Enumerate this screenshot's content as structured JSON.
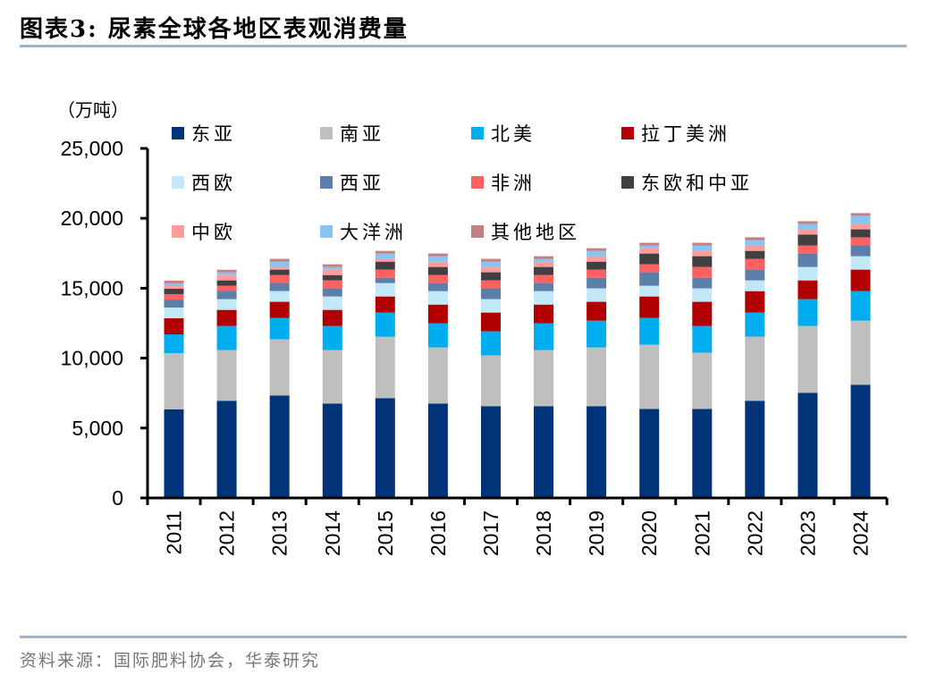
{
  "title": "图表3:  尿素全球各地区表观消费量",
  "source": "资料来源：国际肥料协会，华泰研究",
  "chart_data": {
    "type": "bar",
    "stacked": true,
    "title": "尿素全球各地区表观消费量",
    "ylabel": "（万吨）",
    "xlabel": "",
    "ylim": [
      0,
      25000
    ],
    "yticks": [
      0,
      5000,
      10000,
      15000,
      20000,
      25000
    ],
    "ytick_labels": [
      "0",
      "5,000",
      "10,000",
      "15,000",
      "20,000",
      "25,000"
    ],
    "grid": false,
    "legend_position": "top-left",
    "categories": [
      "2011",
      "2012",
      "2013",
      "2014",
      "2015",
      "2016",
      "2017",
      "2018",
      "2019",
      "2020",
      "2021",
      "2022",
      "2023",
      "2024"
    ],
    "series": [
      {
        "name": "东亚",
        "color": "#003378",
        "values": [
          6330,
          6950,
          7330,
          6750,
          7130,
          6750,
          6560,
          6560,
          6560,
          6370,
          6370,
          6950,
          7520,
          8090
        ]
      },
      {
        "name": "南亚",
        "color": "#bfbfbf",
        "values": [
          4030,
          3630,
          4020,
          3830,
          4400,
          4020,
          3640,
          4020,
          4210,
          4590,
          4020,
          4590,
          4780,
          4590
        ]
      },
      {
        "name": "北美",
        "color": "#00adee",
        "values": [
          1340,
          1720,
          1530,
          1720,
          1730,
          1720,
          1720,
          1910,
          1910,
          1920,
          1910,
          1720,
          1920,
          2110
        ]
      },
      {
        "name": "拉丁美洲",
        "color": "#b20000",
        "values": [
          1150,
          1150,
          1150,
          1150,
          1150,
          1340,
          1340,
          1340,
          1350,
          1530,
          1730,
          1530,
          1340,
          1540
        ]
      },
      {
        "name": "西欧",
        "color": "#c2e8f8",
        "values": [
          770,
          770,
          770,
          960,
          960,
          960,
          960,
          960,
          960,
          770,
          960,
          770,
          960,
          960
        ]
      },
      {
        "name": "西亚",
        "color": "#5b7fa9",
        "values": [
          570,
          580,
          580,
          580,
          380,
          580,
          770,
          580,
          760,
          960,
          760,
          770,
          960,
          770
        ]
      },
      {
        "name": "非洲",
        "color": "#ff6161",
        "values": [
          390,
          380,
          570,
          570,
          580,
          580,
          570,
          580,
          580,
          570,
          770,
          770,
          580,
          580
        ]
      },
      {
        "name": "东欧和中亚",
        "color": "#404040",
        "values": [
          380,
          380,
          380,
          380,
          570,
          570,
          580,
          570,
          570,
          770,
          770,
          570,
          770,
          570
        ]
      },
      {
        "name": "中欧",
        "color": "#ff9c9c",
        "values": [
          190,
          380,
          200,
          380,
          190,
          380,
          380,
          380,
          390,
          380,
          380,
          390,
          380,
          390
        ]
      },
      {
        "name": "大洋洲",
        "color": "#87c4f2",
        "values": [
          200,
          190,
          380,
          200,
          390,
          390,
          380,
          200,
          380,
          200,
          390,
          380,
          390,
          580
        ]
      },
      {
        "name": "其他地区",
        "color": "#c48080",
        "values": [
          190,
          190,
          190,
          190,
          190,
          190,
          200,
          190,
          190,
          190,
          190,
          200,
          190,
          190
        ]
      }
    ]
  }
}
